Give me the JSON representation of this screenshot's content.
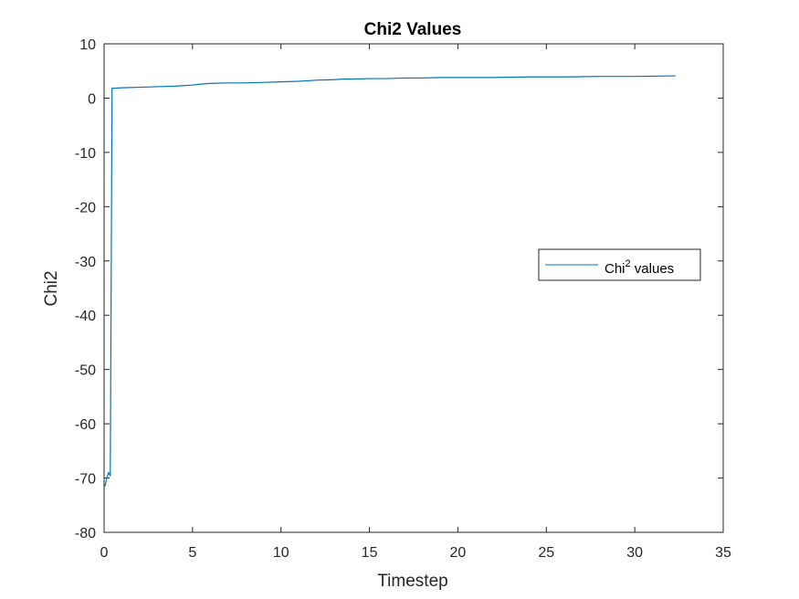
{
  "chart_data": {
    "type": "line",
    "title": "Chi2 Values",
    "xlabel": "Timestep",
    "ylabel": "Chi2",
    "xlim": [
      0,
      35
    ],
    "ylim": [
      -80,
      10
    ],
    "xticks": [
      0,
      5,
      10,
      15,
      20,
      25,
      30,
      35
    ],
    "yticks": [
      -80,
      -70,
      -60,
      -50,
      -40,
      -30,
      -20,
      -10,
      0,
      10
    ],
    "xtick_labels": [
      "0",
      "5",
      "10",
      "15",
      "20",
      "25",
      "30",
      "35"
    ],
    "ytick_labels": [
      "-80",
      "-70",
      "-60",
      "-50",
      "-40",
      "-30",
      "-20",
      "-10",
      "0",
      "10"
    ],
    "grid": false,
    "legend_position": "right",
    "series": [
      {
        "name": "Chi² values",
        "color": "#0072BD",
        "x": [
          0.05,
          0.15,
          0.25,
          0.35,
          0.45,
          1.0,
          2.0,
          3.0,
          4.0,
          4.5,
          5.0,
          5.5,
          6.0,
          7.0,
          8.0,
          9.0,
          10.0,
          11.0,
          11.5,
          12.0,
          13.0,
          13.5,
          14.0,
          15.0,
          16.0,
          17.0,
          18.0,
          19.0,
          20.0,
          22.0,
          24.0,
          26.0,
          28.0,
          30.0,
          32.3
        ],
        "y": [
          -71.5,
          -70.0,
          -69.0,
          -69.5,
          1.8,
          1.9,
          2.0,
          2.1,
          2.2,
          2.3,
          2.4,
          2.6,
          2.7,
          2.8,
          2.8,
          2.9,
          3.0,
          3.1,
          3.2,
          3.3,
          3.4,
          3.5,
          3.5,
          3.6,
          3.6,
          3.7,
          3.7,
          3.8,
          3.8,
          3.8,
          3.9,
          3.9,
          4.0,
          4.0,
          4.1
        ]
      }
    ]
  },
  "legend": {
    "label_base": "Chi",
    "label_sup": "2",
    "label_rest": " values"
  }
}
